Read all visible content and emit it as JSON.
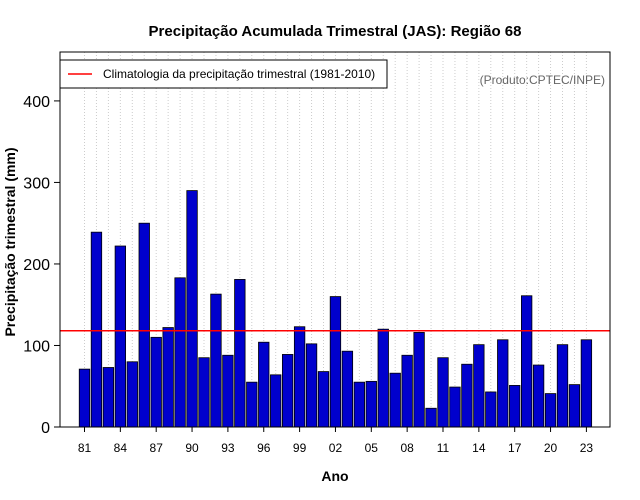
{
  "chart_data": {
    "type": "bar",
    "title": "Precipitação Acumulada Trimestral (JAS): Região 68",
    "xlabel": "Ano",
    "ylabel": "Precipitação trimestral (mm)",
    "ylim": [
      0,
      460
    ],
    "yticks": [
      0,
      100,
      200,
      300,
      400
    ],
    "xticks": [
      "81",
      "84",
      "87",
      "90",
      "93",
      "96",
      "99",
      "02",
      "05",
      "08",
      "11",
      "14",
      "17",
      "20",
      "23"
    ],
    "categories": [
      "1981",
      "1982",
      "1983",
      "1984",
      "1985",
      "1986",
      "1987",
      "1988",
      "1989",
      "1990",
      "1991",
      "1992",
      "1993",
      "1994",
      "1995",
      "1996",
      "1997",
      "1998",
      "1999",
      "2000",
      "2001",
      "2002",
      "2003",
      "2004",
      "2005",
      "2006",
      "2007",
      "2008",
      "2009",
      "2010",
      "2011",
      "2012",
      "2013",
      "2014",
      "2015",
      "2016",
      "2017",
      "2018",
      "2019",
      "2020",
      "2021",
      "2022",
      "2023"
    ],
    "values": [
      71,
      239,
      73,
      222,
      80,
      250,
      110,
      122,
      183,
      290,
      85,
      163,
      88,
      181,
      55,
      104,
      64,
      89,
      123,
      102,
      68,
      160,
      93,
      55,
      56,
      120,
      66,
      88,
      116,
      23,
      85,
      49,
      77,
      101,
      43,
      107,
      51,
      161,
      76,
      41,
      101,
      52,
      107
    ],
    "bar_color": "#0000cd",
    "climatology": {
      "label": "Climatologia da precipitação trimestral (1981-2010)",
      "value": 118,
      "color": "#ff0000"
    },
    "legend_position": "top-left",
    "grid": "vertical dotted",
    "credit": "(Produto:CPTEC/INPE)"
  }
}
